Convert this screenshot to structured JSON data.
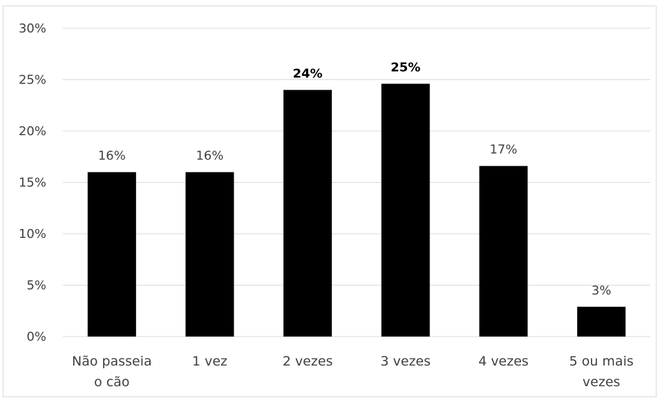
{
  "chart_data": {
    "type": "bar",
    "categories": [
      [
        "Não passeia",
        "o cão"
      ],
      [
        "1 vez"
      ],
      [
        "2 vezes"
      ],
      [
        "3 vezes"
      ],
      [
        "4 vezes"
      ],
      [
        "5 ou mais",
        "vezes"
      ]
    ],
    "values": [
      16,
      16,
      24,
      24.6,
      16.6,
      2.9
    ],
    "data_labels": [
      "16%",
      "16%",
      "24%",
      "25%",
      "17%",
      "3%"
    ],
    "emphasized_labels": [
      false,
      false,
      true,
      true,
      false,
      false
    ],
    "y_ticks": [
      "0%",
      "5%",
      "10%",
      "15%",
      "20%",
      "25%",
      "30%"
    ],
    "ylim": [
      0,
      30
    ],
    "grid": true,
    "legend": "none",
    "title": "",
    "xlabel": "",
    "ylabel": "",
    "bar_color": "#000000",
    "grid_color": "#d9d9d9",
    "text_color": "#404040"
  }
}
